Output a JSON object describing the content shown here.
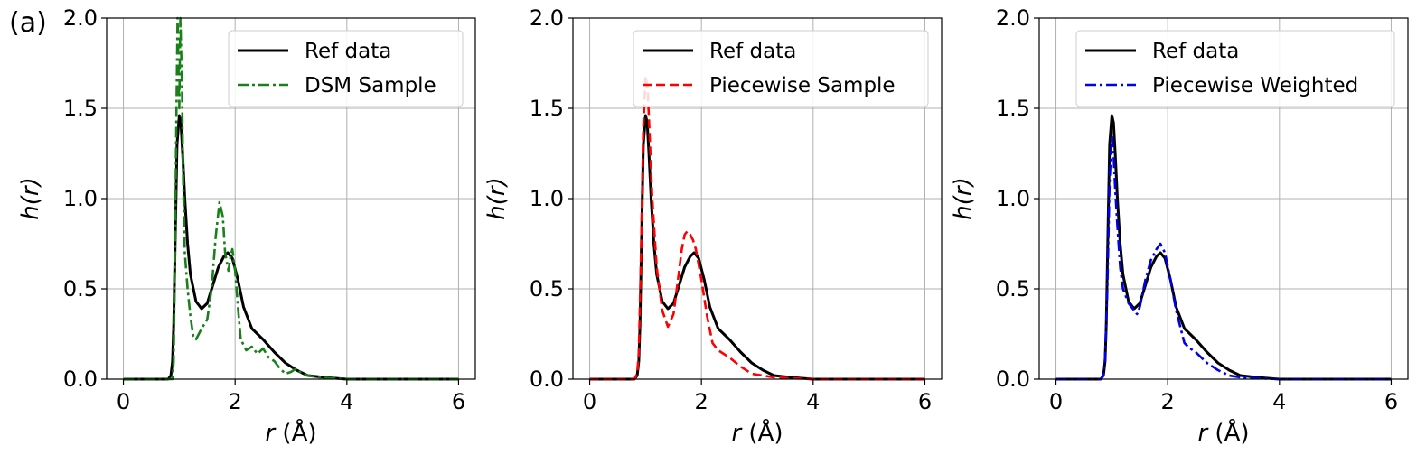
{
  "figure": {
    "panel_label": "(a)"
  },
  "colors": {
    "ref": "#000000",
    "dsm": "#1a801a",
    "piecewise_sample": "#ff0000",
    "piecewise_weighted": "#0000ee",
    "grid": "#b0b0b0"
  },
  "chart_data": [
    {
      "type": "line",
      "title": "",
      "xlabel_italic": "r",
      "xlabel_unit": " (Å)",
      "ylabel": "h(r)",
      "xlim": [
        -0.3,
        6.3
      ],
      "ylim": [
        0,
        2.0
      ],
      "xticks": [
        0,
        2,
        4,
        6
      ],
      "xtick_labels": [
        "0",
        "2",
        "4",
        "6"
      ],
      "yticks": [
        0,
        0.5,
        1.0,
        1.5,
        2.0
      ],
      "ytick_labels": [
        "0.0",
        "0.5",
        "1.0",
        "1.5",
        "2.0"
      ],
      "grid": true,
      "legend_position": "top-right",
      "series": [
        {
          "name": "Ref data",
          "style": "solid",
          "color": "#000000",
          "x": [
            0,
            0.8,
            0.85,
            0.88,
            0.9,
            0.93,
            0.96,
            1.0,
            1.03,
            1.06,
            1.1,
            1.15,
            1.2,
            1.3,
            1.4,
            1.5,
            1.6,
            1.7,
            1.8,
            1.87,
            1.95,
            2.05,
            2.15,
            2.3,
            2.5,
            2.7,
            2.9,
            3.1,
            3.3,
            3.6,
            4.0,
            6.0
          ],
          "y": [
            0,
            0,
            0.02,
            0.1,
            0.3,
            0.8,
            1.3,
            1.46,
            1.42,
            1.25,
            1.0,
            0.75,
            0.58,
            0.43,
            0.39,
            0.42,
            0.52,
            0.62,
            0.68,
            0.7,
            0.67,
            0.55,
            0.4,
            0.28,
            0.22,
            0.15,
            0.09,
            0.05,
            0.02,
            0.01,
            0,
            0
          ]
        },
        {
          "name": "DSM Sample",
          "style": "dashdot",
          "color": "#1a801a",
          "x": [
            0,
            0.88,
            0.9,
            0.92,
            0.95,
            0.97,
            1.0,
            1.02,
            1.05,
            1.07,
            1.1,
            1.15,
            1.2,
            1.25,
            1.3,
            1.35,
            1.4,
            1.5,
            1.58,
            1.65,
            1.72,
            1.78,
            1.82,
            1.88,
            1.92,
            1.95,
            2.0,
            2.05,
            2.1,
            2.2,
            2.3,
            2.4,
            2.5,
            2.6,
            2.7,
            2.8,
            2.9,
            3.0,
            3.1,
            3.2,
            3.3,
            3.5,
            4.0,
            6.0
          ],
          "y": [
            0,
            0,
            0.1,
            0.6,
            1.5,
            2.0,
            1.5,
            2.0,
            1.6,
            1.1,
            0.7,
            0.5,
            0.35,
            0.24,
            0.22,
            0.25,
            0.28,
            0.33,
            0.5,
            0.78,
            0.98,
            0.9,
            0.7,
            0.6,
            0.68,
            0.72,
            0.6,
            0.4,
            0.22,
            0.16,
            0.18,
            0.14,
            0.17,
            0.12,
            0.1,
            0.06,
            0.03,
            0.04,
            0.06,
            0.03,
            0.02,
            0.01,
            0,
            0
          ]
        }
      ]
    },
    {
      "type": "line",
      "title": "",
      "xlabel_italic": "r",
      "xlabel_unit": " (Å)",
      "ylabel": "h(r)",
      "xlim": [
        -0.3,
        6.3
      ],
      "ylim": [
        0,
        2.0
      ],
      "xticks": [
        0,
        2,
        4,
        6
      ],
      "xtick_labels": [
        "0",
        "2",
        "4",
        "6"
      ],
      "yticks": [
        0,
        0.5,
        1.0,
        1.5,
        2.0
      ],
      "ytick_labels": [
        "0.0",
        "0.5",
        "1.0",
        "1.5",
        "2.0"
      ],
      "grid": true,
      "legend_position": "top-right",
      "series": [
        {
          "name": "Ref data",
          "style": "solid",
          "color": "#000000",
          "x": [
            0,
            0.8,
            0.85,
            0.88,
            0.9,
            0.93,
            0.96,
            1.0,
            1.03,
            1.06,
            1.1,
            1.15,
            1.2,
            1.3,
            1.4,
            1.5,
            1.6,
            1.7,
            1.8,
            1.87,
            1.95,
            2.05,
            2.15,
            2.3,
            2.5,
            2.7,
            2.9,
            3.1,
            3.3,
            3.6,
            4.0,
            6.0
          ],
          "y": [
            0,
            0,
            0.02,
            0.1,
            0.3,
            0.8,
            1.3,
            1.46,
            1.42,
            1.25,
            1.0,
            0.75,
            0.58,
            0.43,
            0.39,
            0.42,
            0.52,
            0.62,
            0.68,
            0.7,
            0.67,
            0.55,
            0.4,
            0.28,
            0.22,
            0.15,
            0.09,
            0.05,
            0.02,
            0.01,
            0,
            0
          ]
        },
        {
          "name": "Piecewise Sample",
          "style": "dashed",
          "color": "#ff0000",
          "x": [
            0,
            0.8,
            0.85,
            0.88,
            0.92,
            0.96,
            1.0,
            1.04,
            1.08,
            1.12,
            1.2,
            1.3,
            1.4,
            1.5,
            1.58,
            1.65,
            1.7,
            1.75,
            1.8,
            1.85,
            1.9,
            2.0,
            2.1,
            2.2,
            2.3,
            2.5,
            2.7,
            2.9,
            3.1,
            3.3,
            3.6,
            4.0,
            6.0
          ],
          "y": [
            0,
            0,
            0.03,
            0.15,
            0.7,
            1.4,
            1.68,
            1.6,
            1.3,
            1.0,
            0.62,
            0.38,
            0.29,
            0.36,
            0.55,
            0.72,
            0.8,
            0.82,
            0.8,
            0.77,
            0.72,
            0.55,
            0.35,
            0.2,
            0.16,
            0.12,
            0.07,
            0.03,
            0.02,
            0.01,
            0.005,
            0,
            0
          ]
        }
      ]
    },
    {
      "type": "line",
      "title": "",
      "xlabel_italic": "r",
      "xlabel_unit": " (Å)",
      "ylabel": "h(r)",
      "xlim": [
        -0.3,
        6.3
      ],
      "ylim": [
        0,
        2.0
      ],
      "xticks": [
        0,
        2,
        4,
        6
      ],
      "xtick_labels": [
        "0",
        "2",
        "4",
        "6"
      ],
      "yticks": [
        0,
        0.5,
        1.0,
        1.5,
        2.0
      ],
      "ytick_labels": [
        "0.0",
        "0.5",
        "1.0",
        "1.5",
        "2.0"
      ],
      "grid": true,
      "legend_position": "top-right",
      "series": [
        {
          "name": "Ref data",
          "style": "solid",
          "color": "#000000",
          "x": [
            0,
            0.8,
            0.85,
            0.88,
            0.9,
            0.93,
            0.96,
            1.0,
            1.03,
            1.06,
            1.1,
            1.15,
            1.2,
            1.3,
            1.4,
            1.5,
            1.6,
            1.7,
            1.8,
            1.87,
            1.95,
            2.05,
            2.15,
            2.3,
            2.5,
            2.7,
            2.9,
            3.1,
            3.3,
            3.6,
            4.0,
            6.0
          ],
          "y": [
            0,
            0,
            0.02,
            0.1,
            0.3,
            0.8,
            1.3,
            1.46,
            1.42,
            1.25,
            1.0,
            0.75,
            0.58,
            0.43,
            0.39,
            0.42,
            0.52,
            0.62,
            0.68,
            0.7,
            0.67,
            0.55,
            0.4,
            0.28,
            0.22,
            0.15,
            0.09,
            0.05,
            0.02,
            0.01,
            0,
            0
          ]
        },
        {
          "name": "Piecewise Weighted",
          "style": "dashdot",
          "color": "#0000ee",
          "x": [
            0,
            0.8,
            0.85,
            0.88,
            0.92,
            0.96,
            1.0,
            1.03,
            1.06,
            1.1,
            1.15,
            1.2,
            1.3,
            1.4,
            1.45,
            1.5,
            1.6,
            1.7,
            1.8,
            1.87,
            1.95,
            2.05,
            2.15,
            2.3,
            2.4,
            2.5,
            2.7,
            2.9,
            3.1,
            3.3,
            3.6,
            4.0,
            6.0
          ],
          "y": [
            0,
            0,
            0.02,
            0.12,
            0.5,
            1.1,
            1.35,
            1.25,
            1.05,
            0.85,
            0.62,
            0.5,
            0.42,
            0.38,
            0.36,
            0.4,
            0.55,
            0.66,
            0.72,
            0.75,
            0.7,
            0.55,
            0.38,
            0.2,
            0.17,
            0.15,
            0.09,
            0.05,
            0.02,
            0.01,
            0.005,
            0,
            0
          ]
        }
      ]
    }
  ]
}
